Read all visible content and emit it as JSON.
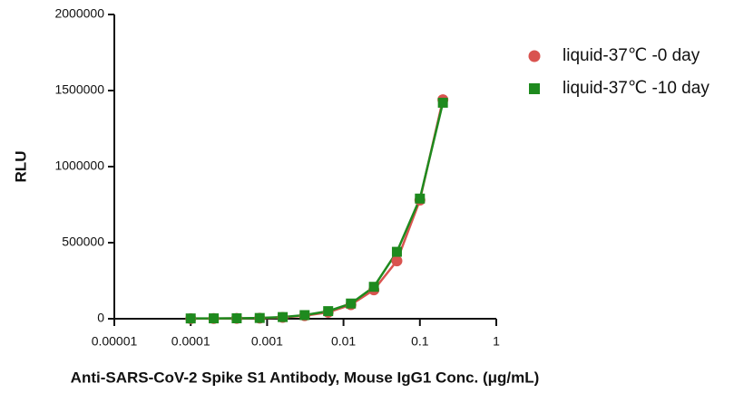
{
  "chart_data": {
    "type": "scatter",
    "xlabel": "Anti-SARS-CoV-2 Spike S1 Antibody, Mouse IgG1 Conc. (μg/mL)",
    "ylabel": "RLU",
    "xscale": "log",
    "xlim": [
      1e-05,
      1
    ],
    "xticks": [
      1e-05,
      0.0001,
      0.001,
      0.01,
      0.1,
      1
    ],
    "ylim": [
      0,
      2000000
    ],
    "yticks": [
      0,
      500000,
      1000000,
      1500000,
      2000000
    ],
    "legend": "upper right",
    "x": [
      0.0001,
      0.0002,
      0.0004,
      0.0008,
      0.0016,
      0.0031,
      0.0063,
      0.0125,
      0.025,
      0.05,
      0.1,
      0.2
    ],
    "series": [
      {
        "name": "liquid-37℃ -0 day",
        "color": "#d9534f",
        "marker": "circle",
        "values": [
          1000,
          1500,
          2000,
          4000,
          9000,
          20000,
          42000,
          92000,
          190000,
          380000,
          780000,
          1440000
        ]
      },
      {
        "name": "liquid-37℃ -10 day",
        "color": "#1e8a1e",
        "marker": "square",
        "values": [
          2000,
          2500,
          3000,
          5000,
          11000,
          24000,
          50000,
          100000,
          210000,
          440000,
          790000,
          1420000
        ]
      }
    ]
  }
}
